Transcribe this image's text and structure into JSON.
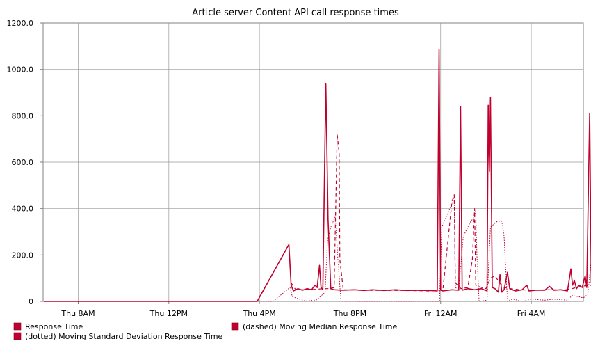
{
  "chart_data": {
    "type": "line",
    "title": "Article server Content API call response times",
    "xlabel": "",
    "ylabel": "",
    "x_unit": "hours since Thu 00:00",
    "xlim": [
      6.45,
      30.3
    ],
    "ylim": [
      0,
      1200
    ],
    "y_ticks": [
      0,
      200,
      400,
      600,
      800,
      1000,
      1200
    ],
    "y_tick_labels": [
      "0",
      "200.0",
      "400.0",
      "600.0",
      "800.0",
      "1000.0",
      "1200.0"
    ],
    "x_ticks": [
      8,
      12,
      16,
      20,
      24,
      28
    ],
    "x_tick_labels": [
      "Thu  8AM",
      "Thu 12PM",
      "Thu  4PM",
      "Thu  8PM",
      "Fri 12AM",
      "Fri  4AM"
    ],
    "grid": true,
    "legend_position": "bottom",
    "series": [
      {
        "name": "Response Time",
        "style": "solid",
        "color": "#c0002e",
        "points": [
          [
            6.5,
            0
          ],
          [
            9.5,
            0
          ],
          [
            10.5,
            0
          ],
          [
            11.5,
            0
          ],
          [
            12.8,
            0
          ],
          [
            14.5,
            0
          ],
          [
            15.9,
            0
          ],
          [
            17.3,
            245
          ],
          [
            17.4,
            70
          ],
          [
            17.5,
            45
          ],
          [
            17.7,
            55
          ],
          [
            17.9,
            48
          ],
          [
            18.1,
            55
          ],
          [
            18.3,
            50
          ],
          [
            18.45,
            70
          ],
          [
            18.55,
            60
          ],
          [
            18.65,
            155
          ],
          [
            18.72,
            60
          ],
          [
            18.8,
            50
          ],
          [
            18.93,
            940
          ],
          [
            19.03,
            355
          ],
          [
            19.15,
            55
          ],
          [
            19.3,
            50
          ],
          [
            19.7,
            48
          ],
          [
            20.2,
            50
          ],
          [
            20.6,
            47
          ],
          [
            21.0,
            50
          ],
          [
            21.5,
            47
          ],
          [
            22.0,
            50
          ],
          [
            22.5,
            47
          ],
          [
            23.0,
            48
          ],
          [
            23.5,
            47
          ],
          [
            23.85,
            45
          ],
          [
            23.93,
            1085
          ],
          [
            24.0,
            48
          ],
          [
            24.1,
            45
          ],
          [
            24.5,
            50
          ],
          [
            24.8,
            48
          ],
          [
            24.88,
            840
          ],
          [
            24.95,
            48
          ],
          [
            25.2,
            55
          ],
          [
            25.5,
            50
          ],
          [
            25.8,
            55
          ],
          [
            26.05,
            45
          ],
          [
            26.1,
            845
          ],
          [
            26.15,
            560
          ],
          [
            26.2,
            880
          ],
          [
            26.28,
            60
          ],
          [
            26.4,
            55
          ],
          [
            26.55,
            40
          ],
          [
            26.62,
            115
          ],
          [
            26.7,
            40
          ],
          [
            26.8,
            50
          ],
          [
            26.95,
            125
          ],
          [
            27.05,
            55
          ],
          [
            27.3,
            45
          ],
          [
            27.6,
            50
          ],
          [
            27.8,
            70
          ],
          [
            27.9,
            45
          ],
          [
            28.2,
            48
          ],
          [
            28.6,
            48
          ],
          [
            28.8,
            65
          ],
          [
            29.0,
            48
          ],
          [
            29.3,
            50
          ],
          [
            29.6,
            45
          ],
          [
            29.75,
            140
          ],
          [
            29.82,
            70
          ],
          [
            29.9,
            90
          ],
          [
            30.0,
            55
          ],
          [
            30.1,
            70
          ],
          [
            30.25,
            60
          ],
          [
            30.38,
            110
          ],
          [
            30.45,
            60
          ],
          [
            30.58,
            810
          ],
          [
            30.65,
            80
          ],
          [
            30.75,
            75
          ]
        ]
      },
      {
        "name": "(dashed) Moving Median Response Time",
        "style": "dashed",
        "color": "#c0002e",
        "points": [
          [
            17.4,
            80
          ],
          [
            17.6,
            50
          ],
          [
            18.0,
            50
          ],
          [
            18.5,
            52
          ],
          [
            18.8,
            55
          ],
          [
            19.1,
            55
          ],
          [
            19.3,
            60
          ],
          [
            19.43,
            720
          ],
          [
            19.52,
            640
          ],
          [
            19.55,
            180
          ],
          [
            19.7,
            50
          ],
          [
            20.5,
            48
          ],
          [
            21.5,
            47
          ],
          [
            22.5,
            47
          ],
          [
            23.5,
            45
          ],
          [
            24.1,
            50
          ],
          [
            24.5,
            430
          ],
          [
            24.6,
            460
          ],
          [
            24.65,
            80
          ],
          [
            24.9,
            55
          ],
          [
            25.2,
            60
          ],
          [
            25.4,
            180
          ],
          [
            25.5,
            400
          ],
          [
            25.55,
            70
          ],
          [
            25.8,
            60
          ],
          [
            26.0,
            55
          ],
          [
            26.2,
            100
          ],
          [
            26.4,
            110
          ],
          [
            26.6,
            80
          ],
          [
            26.8,
            60
          ],
          [
            27.1,
            55
          ],
          [
            27.5,
            50
          ],
          [
            28.0,
            48
          ],
          [
            28.8,
            50
          ],
          [
            29.5,
            50
          ],
          [
            29.8,
            55
          ],
          [
            30.2,
            65
          ],
          [
            30.7,
            70
          ],
          [
            30.9,
            30
          ]
        ]
      },
      {
        "name": "(dotted) Moving Standard Deviation Response Time",
        "style": "dotted",
        "color": "#c0002e",
        "points": [
          [
            6.5,
            0
          ],
          [
            16.6,
            0
          ],
          [
            17.35,
            60
          ],
          [
            17.45,
            20
          ],
          [
            18.0,
            2
          ],
          [
            18.5,
            5
          ],
          [
            18.8,
            30
          ],
          [
            18.9,
            40
          ],
          [
            19.0,
            260
          ],
          [
            19.15,
            320
          ],
          [
            19.35,
            365
          ],
          [
            19.45,
            200
          ],
          [
            19.6,
            0
          ],
          [
            20.5,
            0
          ],
          [
            22.0,
            0
          ],
          [
            23.5,
            0
          ],
          [
            23.95,
            0
          ],
          [
            24.05,
            320
          ],
          [
            24.5,
            420
          ],
          [
            24.6,
            450
          ],
          [
            24.65,
            60
          ],
          [
            24.8,
            50
          ],
          [
            25.0,
            280
          ],
          [
            25.3,
            340
          ],
          [
            25.45,
            360
          ],
          [
            25.55,
            390
          ],
          [
            25.6,
            200
          ],
          [
            25.7,
            0
          ],
          [
            26.05,
            5
          ],
          [
            26.2,
            320
          ],
          [
            26.5,
            345
          ],
          [
            26.7,
            345
          ],
          [
            26.8,
            280
          ],
          [
            26.95,
            0
          ],
          [
            27.2,
            10
          ],
          [
            27.6,
            0
          ],
          [
            28.0,
            10
          ],
          [
            28.6,
            5
          ],
          [
            29.0,
            10
          ],
          [
            29.6,
            5
          ],
          [
            29.8,
            25
          ],
          [
            30.1,
            20
          ],
          [
            30.3,
            15
          ],
          [
            30.5,
            30
          ],
          [
            30.7,
            230
          ],
          [
            30.9,
            280
          ],
          [
            31.0,
            290
          ],
          [
            31.1,
            0
          ]
        ]
      }
    ]
  }
}
